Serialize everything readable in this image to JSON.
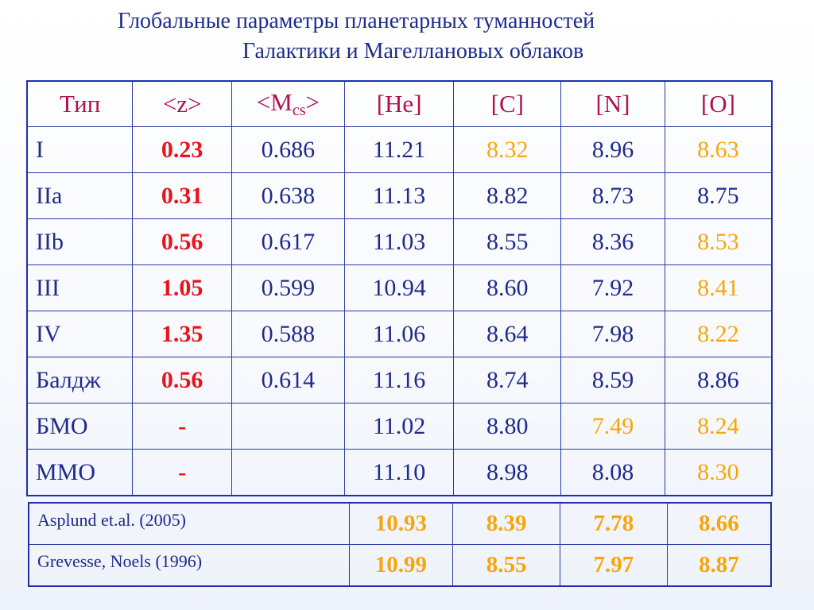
{
  "title": {
    "line1": "Глобальные параметры планетарных туманностей",
    "line2": "Галактики и Магеллановых  облаков"
  },
  "colors": {
    "title": "#1d2a8f",
    "header_text": "#b0124e",
    "z_values": "#e8141c",
    "highlight": "#f6a60a",
    "body_text": "#1f2a8a",
    "border": "#1f2fb0"
  },
  "table": {
    "headers": {
      "type": "Тип",
      "z": "<z>",
      "mcs_prefix": "<M",
      "mcs_sub": "cs",
      "mcs_suffix": ">",
      "he": "[He]",
      "c": "[C]",
      "n": "[N]",
      "o": "[O]"
    },
    "rows": [
      {
        "type": "I",
        "z": "0.23",
        "mcs": "0.686",
        "he": "11.21",
        "c": "8.32",
        "n": "8.96",
        "o": "8.63",
        "c_hl": true,
        "n_hl": false,
        "o_hl": true
      },
      {
        "type": "IIa",
        "z": "0.31",
        "mcs": "0.638",
        "he": "11.13",
        "c": "8.82",
        "n": "8.73",
        "o": "8.75",
        "c_hl": false,
        "n_hl": false,
        "o_hl": false
      },
      {
        "type": "IIb",
        "z": "0.56",
        "mcs": "0.617",
        "he": "11.03",
        "c": "8.55",
        "n": "8.36",
        "o": "8.53",
        "c_hl": false,
        "n_hl": false,
        "o_hl": true
      },
      {
        "type": "III",
        "z": "1.05",
        "mcs": "0.599",
        "he": "10.94",
        "c": "8.60",
        "n": "7.92",
        "o": "8.41",
        "c_hl": false,
        "n_hl": false,
        "o_hl": true
      },
      {
        "type": "IV",
        "z": "1.35",
        "mcs": "0.588",
        "he": "11.06",
        "c": "8.64",
        "n": "7.98",
        "o": "8.22",
        "c_hl": false,
        "n_hl": false,
        "o_hl": true
      },
      {
        "type": "Балдж",
        "z": "0.56",
        "mcs": "0.614",
        "he": "11.16",
        "c": "8.74",
        "n": "8.59",
        "o": "8.86",
        "c_hl": false,
        "n_hl": false,
        "o_hl": false
      },
      {
        "type": "БМО",
        "z": "-",
        "mcs": "",
        "he": "11.02",
        "c": "8.80",
        "n": "7.49",
        "o": "8.24",
        "c_hl": false,
        "n_hl": true,
        "o_hl": true
      },
      {
        "type": "ММО",
        "z": "-",
        "mcs": "",
        "he": "11.10",
        "c": "8.98",
        "n": "8.08",
        "o": "8.30",
        "c_hl": false,
        "n_hl": false,
        "o_hl": true
      }
    ]
  },
  "reference": {
    "rows": [
      {
        "source": "Asplund et.al. (2005)",
        "he": "10.93",
        "c": "8.39",
        "n": "7.78",
        "o": "8.66"
      },
      {
        "source": "Grevesse, Noels (1996)",
        "he": "10.99",
        "c": "8.55",
        "n": "7.97",
        "o": "8.87"
      }
    ]
  }
}
